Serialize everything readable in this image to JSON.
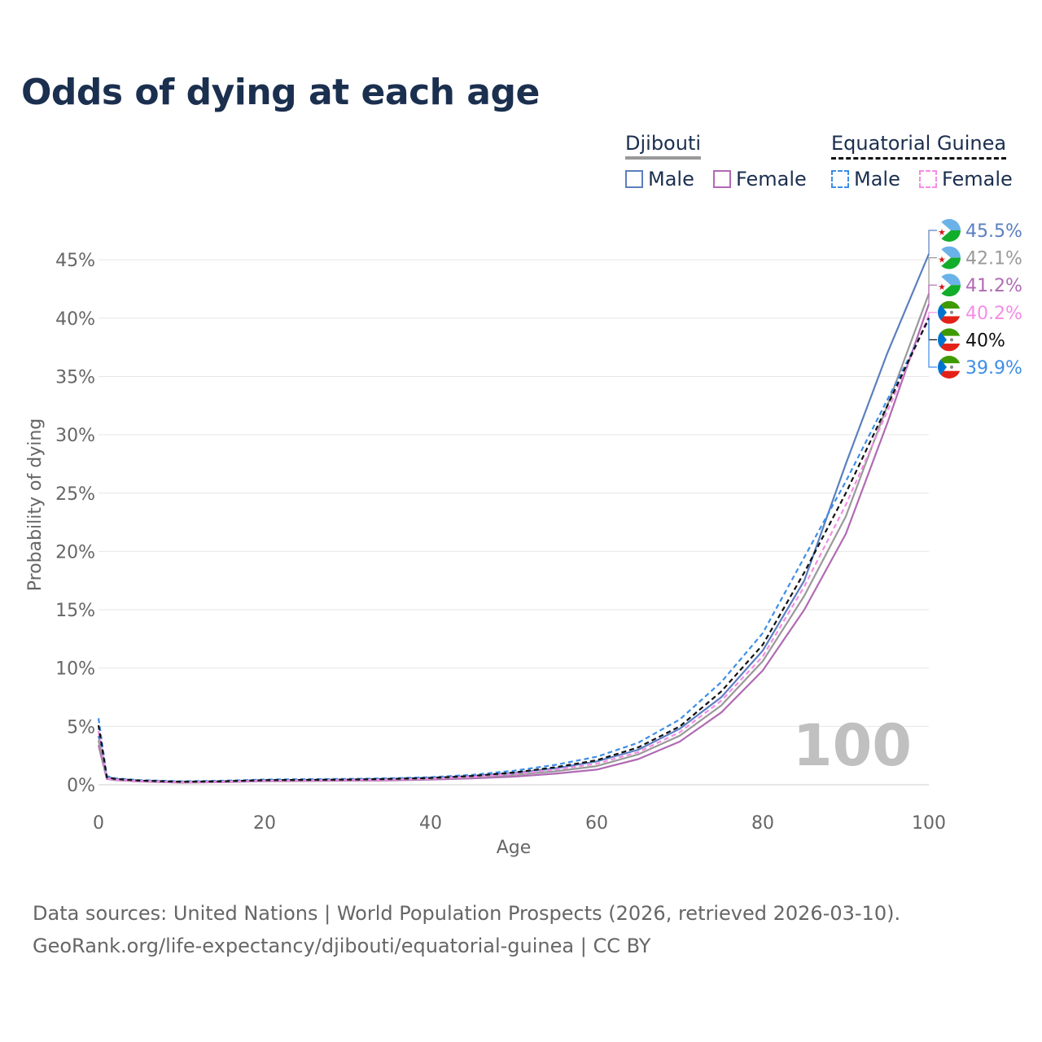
{
  "title": "Odds of dying at each age",
  "legend": {
    "djibouti": {
      "country": "Djibouti",
      "male": "Male",
      "female": "Female"
    },
    "equatorial_guinea": {
      "country": "Equatorial Guinea",
      "male": "Male",
      "female": "Female"
    }
  },
  "watermark": "100",
  "footer": {
    "line1": "Data sources: United Nations | World Population Prospects (2026, retrieved 2026-03-10).",
    "line2": "GeoRank.org/life-expectancy/djibouti/equatorial-guinea | CC BY"
  },
  "colors": {
    "title": "#1b2f4f",
    "dj_male": "#5b7fbf",
    "dj_female": "#b06ab3",
    "dj_total": "#999999",
    "eg_male": "#3d8ee6",
    "eg_female": "#f48ce6",
    "eg_total": "#111111"
  },
  "chart_data": {
    "type": "line",
    "title": "Odds of dying at each age",
    "xlabel": "Age",
    "ylabel": "Probability of dying",
    "xlim": [
      0,
      100
    ],
    "ylim": [
      0,
      47
    ],
    "x_ticks": [
      0,
      20,
      40,
      60,
      80,
      100
    ],
    "y_ticks": [
      0,
      5,
      10,
      15,
      20,
      25,
      30,
      35,
      40,
      45
    ],
    "y_tick_labels": [
      "0%",
      "5%",
      "10%",
      "15%",
      "20%",
      "25%",
      "30%",
      "35%",
      "40%",
      "45%"
    ],
    "x": [
      0,
      1,
      2,
      5,
      10,
      15,
      20,
      25,
      30,
      35,
      40,
      45,
      50,
      55,
      60,
      65,
      70,
      75,
      80,
      85,
      90,
      95,
      100
    ],
    "series": [
      {
        "name": "Djibouti Male",
        "country": "Djibouti",
        "sex": "Male",
        "dash": false,
        "color_key": "dj_male",
        "end_label": "45.5%",
        "values": [
          4.2,
          0.7,
          0.5,
          0.35,
          0.25,
          0.3,
          0.4,
          0.42,
          0.45,
          0.5,
          0.6,
          0.75,
          1.0,
          1.4,
          2.0,
          3.0,
          4.8,
          7.5,
          11.5,
          17.5,
          27.5,
          37.0,
          45.5
        ]
      },
      {
        "name": "Djibouti Female",
        "country": "Djibouti",
        "sex": "Female",
        "dash": false,
        "color_key": "dj_female",
        "end_label": "41.2%",
        "values": [
          3.4,
          0.5,
          0.4,
          0.28,
          0.18,
          0.22,
          0.3,
          0.32,
          0.35,
          0.38,
          0.45,
          0.55,
          0.7,
          0.95,
          1.3,
          2.2,
          3.7,
          6.2,
          9.8,
          15.0,
          21.5,
          31.0,
          41.2
        ]
      },
      {
        "name": "Djibouti Total",
        "country": "Djibouti",
        "sex": "Total",
        "dash": false,
        "color_key": "dj_total",
        "end_label": "42.1%",
        "values": [
          3.8,
          0.6,
          0.45,
          0.32,
          0.22,
          0.26,
          0.35,
          0.37,
          0.4,
          0.44,
          0.52,
          0.65,
          0.85,
          1.15,
          1.6,
          2.6,
          4.2,
          6.8,
          10.6,
          16.2,
          23.0,
          32.5,
          42.1
        ]
      },
      {
        "name": "Equatorial Guinea Male",
        "country": "Equatorial Guinea",
        "sex": "Male",
        "dash": true,
        "color_key": "eg_male",
        "end_label": "39.9%",
        "values": [
          5.7,
          0.75,
          0.55,
          0.4,
          0.3,
          0.35,
          0.45,
          0.48,
          0.5,
          0.55,
          0.65,
          0.85,
          1.2,
          1.7,
          2.4,
          3.6,
          5.6,
          8.8,
          13.0,
          19.5,
          26.0,
          33.0,
          39.9
        ]
      },
      {
        "name": "Equatorial Guinea Female",
        "country": "Equatorial Guinea",
        "sex": "Female",
        "dash": true,
        "color_key": "eg_female",
        "end_label": "40.2%",
        "values": [
          4.6,
          0.55,
          0.45,
          0.32,
          0.22,
          0.26,
          0.35,
          0.37,
          0.4,
          0.44,
          0.52,
          0.68,
          0.92,
          1.3,
          1.8,
          2.8,
          4.5,
          7.2,
          11.0,
          17.0,
          24.0,
          32.0,
          40.2
        ]
      },
      {
        "name": "Equatorial Guinea Total",
        "country": "Equatorial Guinea",
        "sex": "Total",
        "dash": true,
        "color_key": "eg_total",
        "end_label": "40%",
        "values": [
          5.1,
          0.65,
          0.5,
          0.36,
          0.26,
          0.3,
          0.4,
          0.42,
          0.45,
          0.5,
          0.58,
          0.76,
          1.05,
          1.5,
          2.1,
          3.2,
          5.0,
          8.0,
          12.0,
          18.2,
          25.0,
          32.5,
          40.0
        ]
      }
    ],
    "end_label_order": [
      "Djibouti Male",
      "Djibouti Total",
      "Djibouti Female",
      "Equatorial Guinea Female",
      "Equatorial Guinea Total",
      "Equatorial Guinea Male"
    ]
  }
}
